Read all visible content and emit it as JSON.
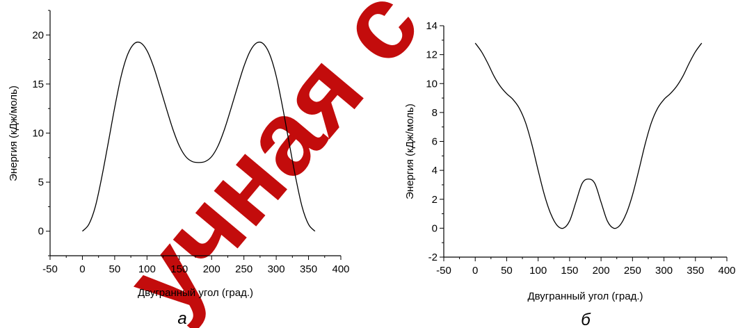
{
  "watermark": {
    "text": "учная с",
    "color": "#c00000"
  },
  "chart_data": [
    {
      "type": "line",
      "panel_label": "а",
      "xlabel": "Двугранный угол (град.)",
      "ylabel": "Энергия (кДж/моль)",
      "xlim": [
        -50,
        400
      ],
      "ylim": [
        -2.5,
        22.5
      ],
      "xticks": [
        -50,
        0,
        50,
        100,
        150,
        200,
        250,
        300,
        350,
        400
      ],
      "yticks": [
        0,
        5,
        10,
        15,
        20
      ],
      "x": [
        0,
        10,
        20,
        30,
        40,
        50,
        60,
        70,
        80,
        90,
        100,
        110,
        120,
        130,
        140,
        150,
        160,
        170,
        180,
        190,
        200,
        210,
        220,
        230,
        240,
        250,
        260,
        270,
        280,
        290,
        300,
        310,
        320,
        330,
        340,
        350,
        360
      ],
      "values": [
        0.0,
        0.7,
        2.5,
        5.5,
        9.0,
        12.6,
        15.8,
        18.0,
        19.1,
        19.2,
        18.4,
        16.8,
        14.7,
        12.5,
        10.4,
        8.7,
        7.6,
        7.1,
        7.0,
        7.1,
        7.6,
        8.7,
        10.4,
        12.5,
        14.7,
        16.8,
        18.4,
        19.2,
        19.1,
        18.0,
        15.8,
        12.6,
        9.0,
        5.5,
        2.5,
        0.7,
        0.0
      ]
    },
    {
      "type": "line",
      "panel_label": "б",
      "xlabel": "Двугранный угол (град.)",
      "ylabel": "Энергия (кДж/моль)",
      "xlim": [
        -50,
        400
      ],
      "ylim": [
        -2,
        14
      ],
      "xticks": [
        -50,
        0,
        50,
        100,
        150,
        200,
        250,
        300,
        350,
        400
      ],
      "yticks": [
        -2,
        0,
        2,
        4,
        6,
        8,
        10,
        12,
        14
      ],
      "x": [
        0,
        10,
        20,
        30,
        40,
        50,
        60,
        70,
        80,
        90,
        100,
        110,
        120,
        130,
        140,
        150,
        160,
        170,
        180,
        190,
        200,
        210,
        220,
        230,
        240,
        250,
        260,
        270,
        280,
        290,
        300,
        310,
        320,
        330,
        340,
        350,
        360
      ],
      "values": [
        12.8,
        12.2,
        11.4,
        10.5,
        9.8,
        9.3,
        8.9,
        8.3,
        7.3,
        5.8,
        4.0,
        2.3,
        1.0,
        0.2,
        0.0,
        0.5,
        1.8,
        3.1,
        3.4,
        3.1,
        1.8,
        0.5,
        0.0,
        0.2,
        1.0,
        2.3,
        4.0,
        5.8,
        7.3,
        8.3,
        8.9,
        9.3,
        9.8,
        10.5,
        11.4,
        12.2,
        12.8
      ]
    }
  ]
}
